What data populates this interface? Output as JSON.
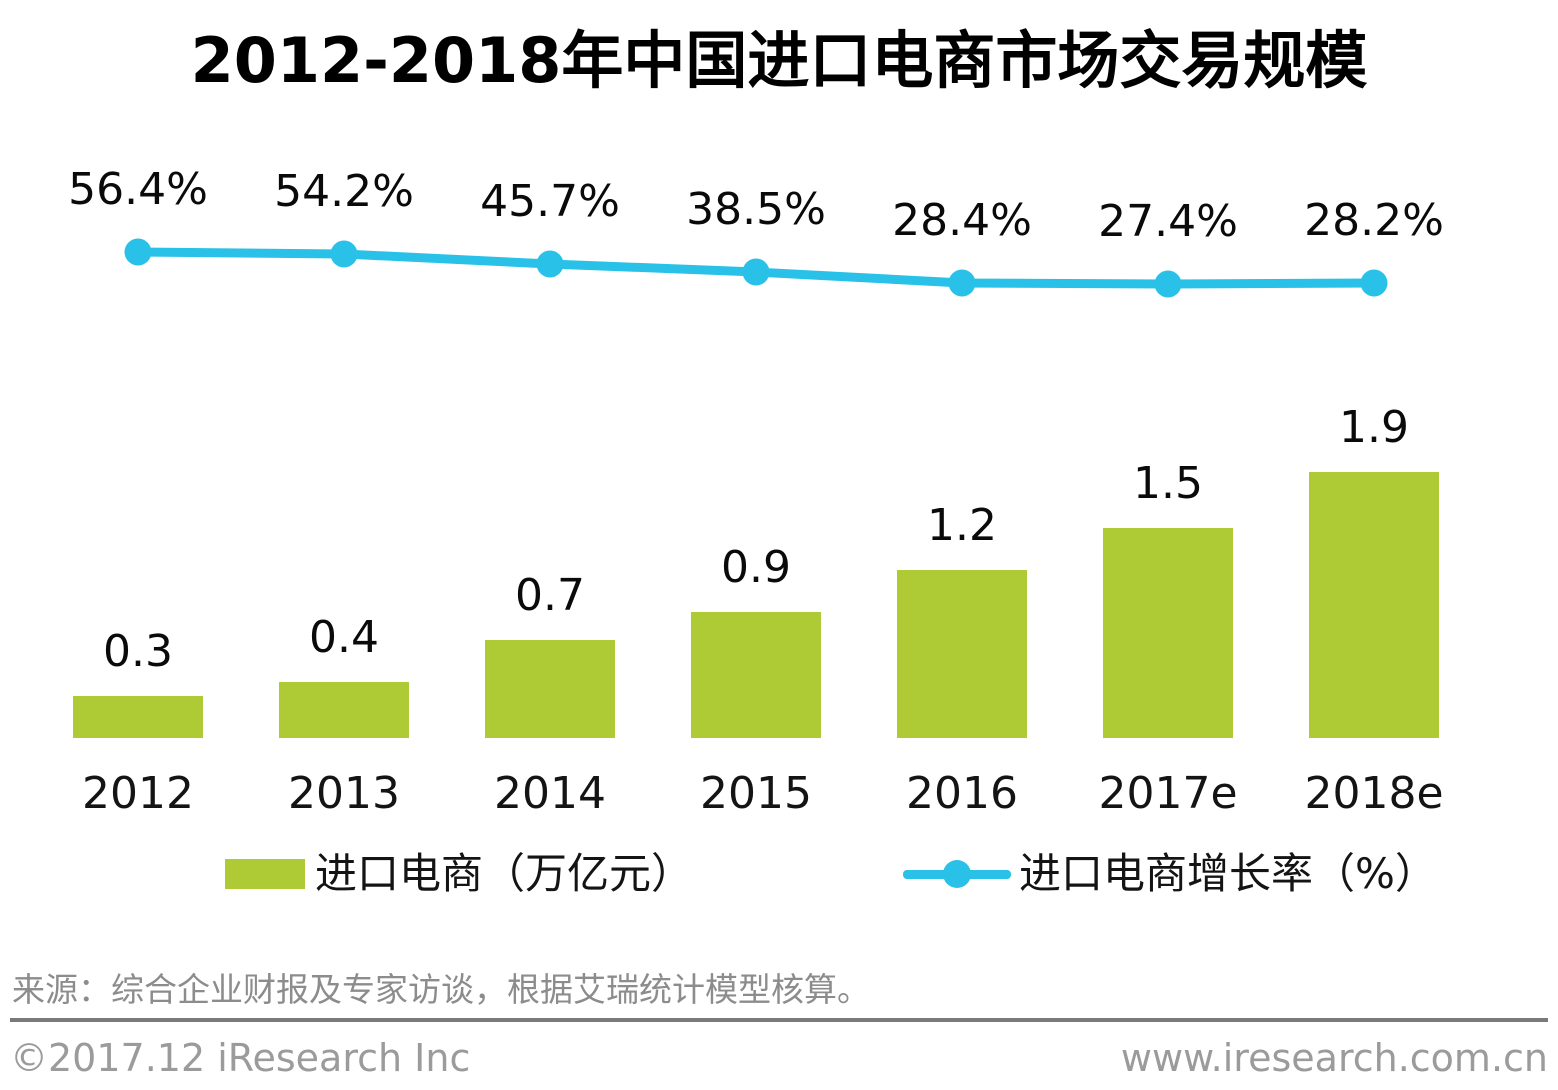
{
  "title": "2012-2018年中国进口电商市场交易规模",
  "chart_data": {
    "type": "bar",
    "subtype": "bar-with-line-overlay",
    "title": "2012-2018年中国进口电商市场交易规模",
    "categories": [
      "2012",
      "2013",
      "2014",
      "2015",
      "2016",
      "2017e",
      "2018e"
    ],
    "series": [
      {
        "name": "进口电商（万亿元）",
        "type": "bar",
        "values": [
          0.3,
          0.4,
          0.7,
          0.9,
          1.2,
          1.5,
          1.9
        ],
        "labels": [
          "0.3",
          "0.4",
          "0.7",
          "0.9",
          "1.2",
          "1.5",
          "1.9"
        ],
        "color": "#AECB35",
        "unit": "万亿元"
      },
      {
        "name": "进口电商增长率（%）",
        "type": "line",
        "values": [
          56.4,
          54.2,
          45.7,
          38.5,
          28.4,
          27.4,
          28.2
        ],
        "labels": [
          "56.4%",
          "54.2%",
          "45.7%",
          "38.5%",
          "28.4%",
          "27.4%",
          "28.2%"
        ],
        "color": "#29C1E8",
        "unit": "%"
      }
    ],
    "xlabel": "",
    "ylabel": "",
    "grid": false,
    "axes_visible": false,
    "data_labels_visible": true,
    "legend_position": "bottom"
  },
  "legend": {
    "bar_label": "进口电商（万亿元）",
    "line_label": "进口电商增长率（%）"
  },
  "source_note": "来源：综合企业财报及专家访谈，根据艾瑞统计模型核算。",
  "footer": {
    "left": "©2017.12 iResearch Inc",
    "right": "www.iresearch.com.cn"
  },
  "colors": {
    "bar": "#AECB35",
    "line": "#29C1E8",
    "text": "#0a0a0a",
    "source_text": "#8c8c8c",
    "footer_text": "#9b9b9b",
    "divider": "#7a7a7a",
    "background": "#ffffff"
  }
}
